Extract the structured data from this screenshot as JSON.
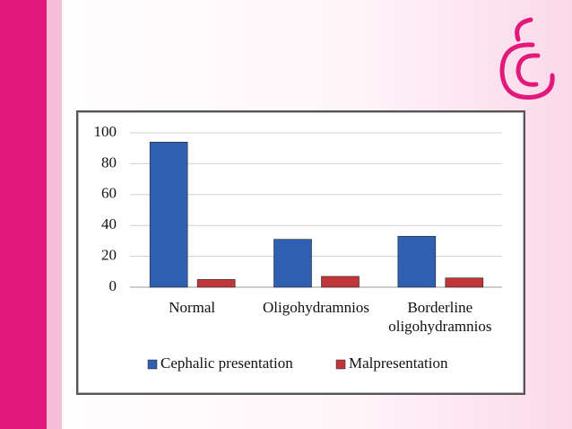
{
  "chart_data": {
    "type": "bar",
    "categories": [
      "Normal",
      "Oligohydramnios",
      "Borderline oligohydramnios"
    ],
    "series": [
      {
        "name": "Cephalic presentation",
        "color": "#2f5fb0",
        "values": [
          94,
          31,
          33
        ]
      },
      {
        "name": "Malpresentation",
        "color": "#c0363a",
        "values": [
          5,
          7,
          6
        ]
      }
    ],
    "ylim": [
      0,
      100
    ],
    "yticks": [
      0,
      20,
      40,
      60,
      80,
      100
    ],
    "grid": true,
    "legend": "bottom"
  }
}
